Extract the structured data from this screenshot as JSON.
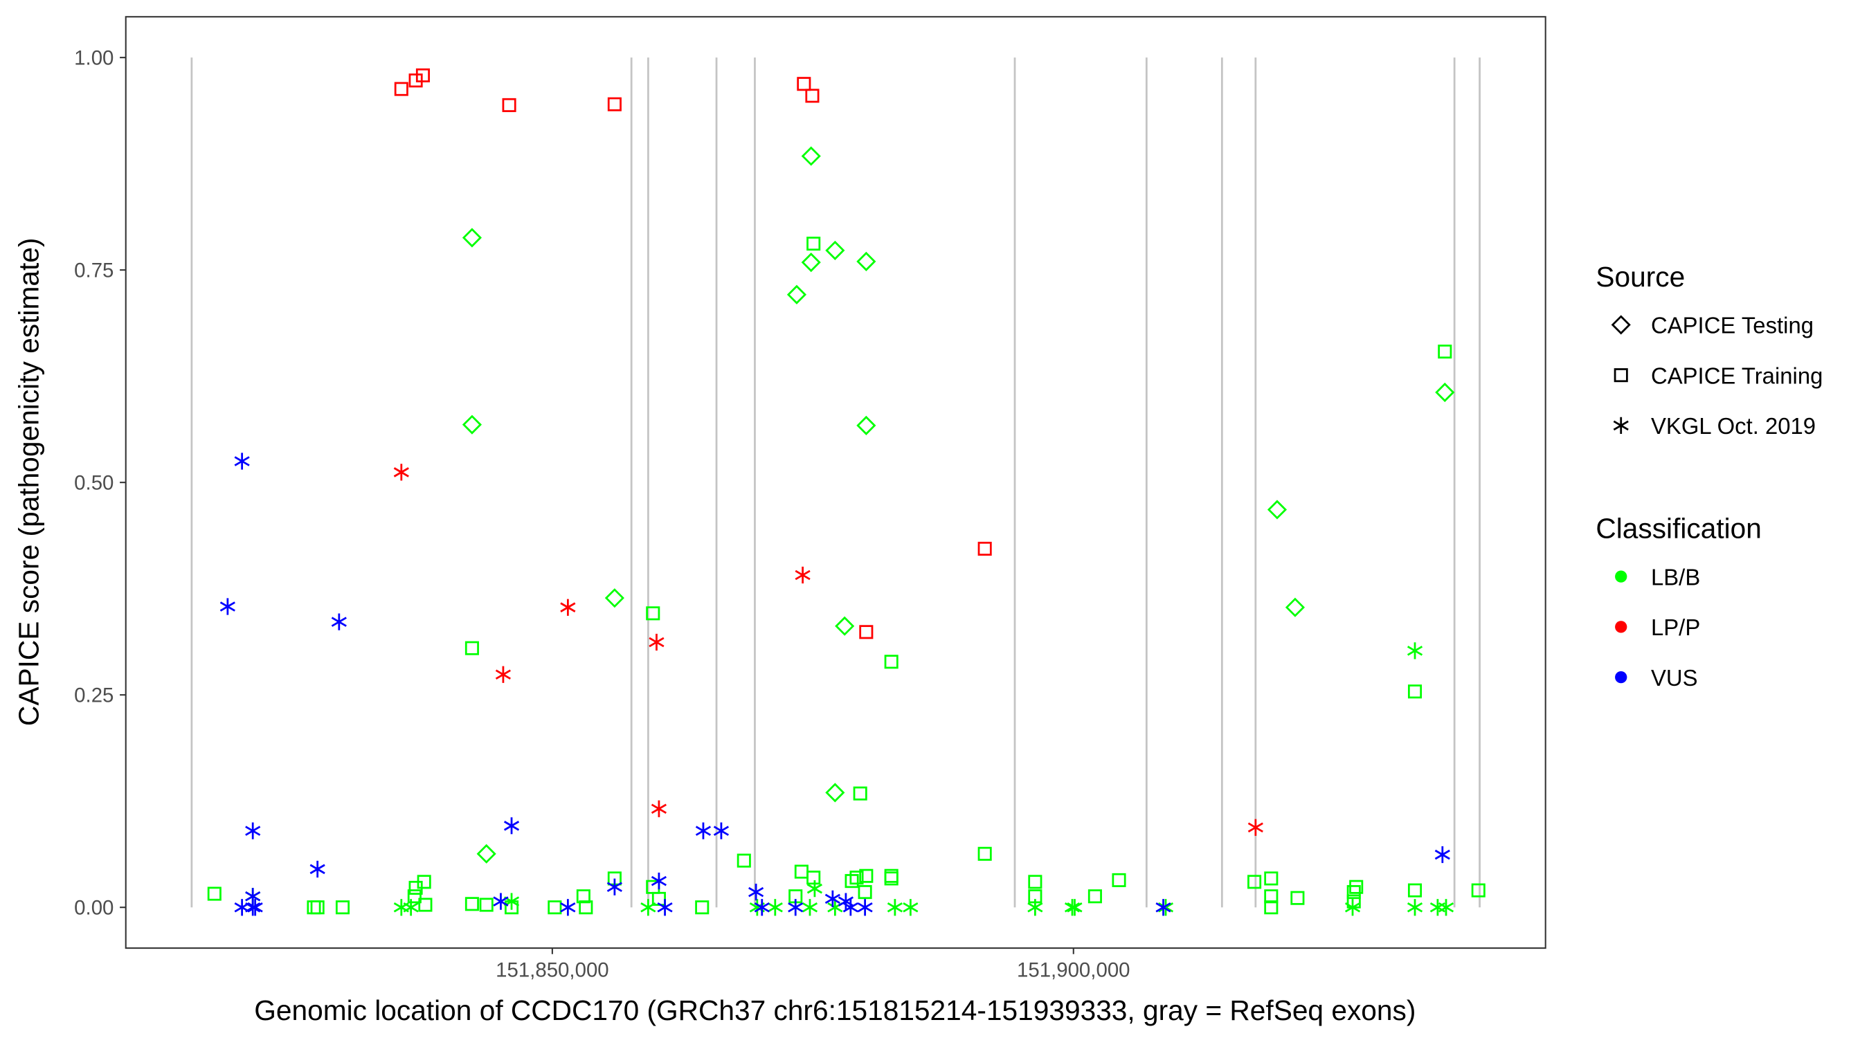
{
  "chart_data": {
    "type": "scatter",
    "xlabel": "Genomic location of CCDC170 (GRCh37 chr6:151815214-151939333, gray = RefSeq exons)",
    "ylabel": "CAPICE score (pathogenicity estimate)",
    "xlim": [
      151809080,
      151945290
    ],
    "ylim": [
      -0.047,
      1.048
    ],
    "x_ticks": [
      151850000,
      151900000
    ],
    "x_tick_labels": [
      "151,850,000",
      "151,900,000"
    ],
    "y_ticks": [
      0,
      0.25,
      0.5,
      0.75,
      1.0
    ],
    "y_tick_labels": [
      "0.00",
      "0.25",
      "0.50",
      "0.75",
      "1.00"
    ],
    "grid": false,
    "exon_positions": [
      151815400,
      151857590,
      151859200,
      151865750,
      151869430,
      151894370,
      151907010,
      151914250,
      151917470,
      151936550,
      151938970
    ],
    "legend": {
      "placement": "right",
      "source_title": "Source",
      "source_items": [
        {
          "label": "CAPICE Testing",
          "shape": "diamond"
        },
        {
          "label": "CAPICE Training",
          "shape": "square"
        },
        {
          "label": "VKGL Oct. 2019",
          "shape": "asterisk"
        }
      ],
      "class_title": "Classification",
      "class_items": [
        {
          "label": "LB/B",
          "color": "#00FF00"
        },
        {
          "label": "LP/P",
          "color": "#FF0000"
        },
        {
          "label": "VUS",
          "color": "#0000FF"
        }
      ]
    },
    "point_fields": [
      "position",
      "score",
      "source",
      "classification"
    ],
    "points": [
      [
        151835518,
        0.963,
        "CAPICE Training",
        "LP/P"
      ],
      [
        151836897,
        0.973,
        "CAPICE Training",
        "LP/P"
      ],
      [
        151837586,
        0.979,
        "CAPICE Training",
        "LP/P"
      ],
      [
        151845862,
        0.944,
        "CAPICE Training",
        "LP/P"
      ],
      [
        151855977,
        0.945,
        "CAPICE Training",
        "LP/P"
      ],
      [
        151874137,
        0.969,
        "CAPICE Training",
        "LP/P"
      ],
      [
        151874942,
        0.955,
        "CAPICE Training",
        "LP/P"
      ],
      [
        151880114,
        0.324,
        "CAPICE Training",
        "LP/P"
      ],
      [
        151891493,
        0.422,
        "CAPICE Training",
        "LP/P"
      ],
      [
        151835518,
        0.512,
        "VKGL Oct. 2019",
        "LP/P"
      ],
      [
        151845287,
        0.274,
        "VKGL Oct. 2019",
        "LP/P"
      ],
      [
        151851494,
        0.353,
        "VKGL Oct. 2019",
        "LP/P"
      ],
      [
        151860000,
        0.312,
        "VKGL Oct. 2019",
        "LP/P"
      ],
      [
        151860230,
        0.116,
        "VKGL Oct. 2019",
        "LP/P"
      ],
      [
        151874022,
        0.391,
        "VKGL Oct. 2019",
        "LP/P"
      ],
      [
        151917471,
        0.094,
        "VKGL Oct. 2019",
        "LP/P"
      ],
      [
        151842299,
        0.788,
        "CAPICE Testing",
        "LB/B"
      ],
      [
        151842299,
        0.568,
        "CAPICE Testing",
        "LB/B"
      ],
      [
        151843678,
        0.063,
        "CAPICE Testing",
        "LB/B"
      ],
      [
        151855977,
        0.364,
        "CAPICE Testing",
        "LB/B"
      ],
      [
        151873448,
        0.721,
        "CAPICE Testing",
        "LB/B"
      ],
      [
        151874827,
        0.884,
        "CAPICE Testing",
        "LB/B"
      ],
      [
        151874827,
        0.759,
        "CAPICE Testing",
        "LB/B"
      ],
      [
        151877126,
        0.773,
        "CAPICE Testing",
        "LB/B"
      ],
      [
        151880114,
        0.76,
        "CAPICE Testing",
        "LB/B"
      ],
      [
        151880114,
        0.567,
        "CAPICE Testing",
        "LB/B"
      ],
      [
        151878045,
        0.331,
        "CAPICE Testing",
        "LB/B"
      ],
      [
        151877126,
        0.135,
        "CAPICE Testing",
        "LB/B"
      ],
      [
        151919539,
        0.468,
        "CAPICE Testing",
        "LB/B"
      ],
      [
        151921263,
        0.353,
        "CAPICE Testing",
        "LB/B"
      ],
      [
        151935630,
        0.606,
        "CAPICE Testing",
        "LB/B"
      ],
      [
        151875057,
        0.781,
        "CAPICE Training",
        "LB/B"
      ],
      [
        151842299,
        0.305,
        "CAPICE Training",
        "LB/B"
      ],
      [
        151859655,
        0.346,
        "CAPICE Training",
        "LB/B"
      ],
      [
        151882528,
        0.289,
        "CAPICE Training",
        "LB/B"
      ],
      [
        151879540,
        0.134,
        "CAPICE Training",
        "LB/B"
      ],
      [
        151868390,
        0.055,
        "CAPICE Training",
        "LB/B"
      ],
      [
        151891493,
        0.063,
        "CAPICE Training",
        "LB/B"
      ],
      [
        151932757,
        0.254,
        "CAPICE Training",
        "LB/B"
      ],
      [
        151935630,
        0.654,
        "CAPICE Training",
        "LB/B"
      ],
      [
        151932757,
        0.02,
        "CAPICE Training",
        "LB/B"
      ],
      [
        151817587,
        0.016,
        "CAPICE Training",
        "LB/B"
      ],
      [
        151827127,
        0.0,
        "CAPICE Training",
        "LB/B"
      ],
      [
        151827472,
        0.0,
        "CAPICE Training",
        "LB/B"
      ],
      [
        151829885,
        0.0,
        "CAPICE Training",
        "LB/B"
      ],
      [
        151836782,
        0.013,
        "CAPICE Training",
        "LB/B"
      ],
      [
        151836897,
        0.023,
        "CAPICE Training",
        "LB/B"
      ],
      [
        151837701,
        0.03,
        "CAPICE Training",
        "LB/B"
      ],
      [
        151837816,
        0.003,
        "CAPICE Training",
        "LB/B"
      ],
      [
        151842299,
        0.004,
        "CAPICE Training",
        "LB/B"
      ],
      [
        151843678,
        0.003,
        "CAPICE Training",
        "LB/B"
      ],
      [
        151846092,
        0.0,
        "CAPICE Training",
        "LB/B"
      ],
      [
        151850230,
        0.0,
        "CAPICE Training",
        "LB/B"
      ],
      [
        151852988,
        0.013,
        "CAPICE Training",
        "LB/B"
      ],
      [
        151853218,
        0.0,
        "CAPICE Training",
        "LB/B"
      ],
      [
        151855977,
        0.034,
        "CAPICE Training",
        "LB/B"
      ],
      [
        151859655,
        0.024,
        "CAPICE Training",
        "LB/B"
      ],
      [
        151860230,
        0.01,
        "CAPICE Training",
        "LB/B"
      ],
      [
        151864368,
        0.0,
        "CAPICE Training",
        "LB/B"
      ],
      [
        151873333,
        0.013,
        "CAPICE Training",
        "LB/B"
      ],
      [
        151873908,
        0.042,
        "CAPICE Training",
        "LB/B"
      ],
      [
        151875057,
        0.035,
        "CAPICE Training",
        "LB/B"
      ],
      [
        151878735,
        0.031,
        "CAPICE Training",
        "LB/B"
      ],
      [
        151879195,
        0.035,
        "CAPICE Training",
        "LB/B"
      ],
      [
        151880000,
        0.018,
        "CAPICE Training",
        "LB/B"
      ],
      [
        151880114,
        0.037,
        "CAPICE Training",
        "LB/B"
      ],
      [
        151882528,
        0.037,
        "CAPICE Training",
        "LB/B"
      ],
      [
        151882528,
        0.034,
        "CAPICE Training",
        "LB/B"
      ],
      [
        151896321,
        0.03,
        "CAPICE Training",
        "LB/B"
      ],
      [
        151896321,
        0.013,
        "CAPICE Training",
        "LB/B"
      ],
      [
        151902068,
        0.013,
        "CAPICE Training",
        "LB/B"
      ],
      [
        151904367,
        0.032,
        "CAPICE Training",
        "LB/B"
      ],
      [
        151917355,
        0.03,
        "CAPICE Training",
        "LB/B"
      ],
      [
        151918964,
        0.034,
        "CAPICE Training",
        "LB/B"
      ],
      [
        151918964,
        0.013,
        "CAPICE Training",
        "LB/B"
      ],
      [
        151918964,
        0.0,
        "CAPICE Training",
        "LB/B"
      ],
      [
        151921493,
        0.011,
        "CAPICE Training",
        "LB/B"
      ],
      [
        151926895,
        0.018,
        "CAPICE Training",
        "LB/B"
      ],
      [
        151927125,
        0.024,
        "CAPICE Training",
        "LB/B"
      ],
      [
        151926895,
        0.007,
        "CAPICE Training",
        "LB/B"
      ],
      [
        151938849,
        0.02,
        "CAPICE Training",
        "LB/B"
      ],
      [
        151835518,
        0.0,
        "VKGL Oct. 2019",
        "LB/B"
      ],
      [
        151836437,
        0.0,
        "VKGL Oct. 2019",
        "LB/B"
      ],
      [
        151846092,
        0.007,
        "VKGL Oct. 2019",
        "LB/B"
      ],
      [
        151859195,
        0.0,
        "VKGL Oct. 2019",
        "LB/B"
      ],
      [
        151869655,
        0.0,
        "VKGL Oct. 2019",
        "LB/B"
      ],
      [
        151871379,
        0.0,
        "VKGL Oct. 2019",
        "LB/B"
      ],
      [
        151874712,
        0.0,
        "VKGL Oct. 2019",
        "LB/B"
      ],
      [
        151875172,
        0.022,
        "VKGL Oct. 2019",
        "LB/B"
      ],
      [
        151877126,
        0.0,
        "VKGL Oct. 2019",
        "LB/B"
      ],
      [
        151882873,
        0.0,
        "VKGL Oct. 2019",
        "LB/B"
      ],
      [
        151884367,
        0.0,
        "VKGL Oct. 2019",
        "LB/B"
      ],
      [
        151896321,
        0.0,
        "VKGL Oct. 2019",
        "LB/B"
      ],
      [
        151899884,
        0.0,
        "VKGL Oct. 2019",
        "LB/B"
      ],
      [
        151900114,
        0.0,
        "VKGL Oct. 2019",
        "LB/B"
      ],
      [
        151908849,
        0.0,
        "VKGL Oct. 2019",
        "LB/B"
      ],
      [
        151926780,
        0.0,
        "VKGL Oct. 2019",
        "LB/B"
      ],
      [
        151932757,
        0.0,
        "VKGL Oct. 2019",
        "LB/B"
      ],
      [
        151932757,
        0.302,
        "VKGL Oct. 2019",
        "LB/B"
      ],
      [
        151934941,
        0.0,
        "VKGL Oct. 2019",
        "LB/B"
      ],
      [
        151935745,
        0.0,
        "VKGL Oct. 2019",
        "LB/B"
      ],
      [
        151821265,
        0.013,
        "VKGL Oct. 2019",
        "LB/B"
      ],
      [
        151820231,
        0.525,
        "VKGL Oct. 2019",
        "VUS"
      ],
      [
        151818851,
        0.354,
        "VKGL Oct. 2019",
        "VUS"
      ],
      [
        151829541,
        0.336,
        "VKGL Oct. 2019",
        "VUS"
      ],
      [
        151821265,
        0.09,
        "VKGL Oct. 2019",
        "VUS"
      ],
      [
        151827472,
        0.045,
        "VKGL Oct. 2019",
        "VUS"
      ],
      [
        151846092,
        0.096,
        "VKGL Oct. 2019",
        "VUS"
      ],
      [
        151855977,
        0.024,
        "VKGL Oct. 2019",
        "VUS"
      ],
      [
        151860230,
        0.031,
        "VKGL Oct. 2019",
        "VUS"
      ],
      [
        151864482,
        0.09,
        "VKGL Oct. 2019",
        "VUS"
      ],
      [
        151866207,
        0.09,
        "VKGL Oct. 2019",
        "VUS"
      ],
      [
        151869540,
        0.018,
        "VKGL Oct. 2019",
        "VUS"
      ],
      [
        151935400,
        0.062,
        "VKGL Oct. 2019",
        "VUS"
      ],
      [
        151820231,
        0.0,
        "VKGL Oct. 2019",
        "VUS"
      ],
      [
        151821265,
        0.0,
        "VKGL Oct. 2019",
        "VUS"
      ],
      [
        151821495,
        0.0,
        "VKGL Oct. 2019",
        "VUS"
      ],
      [
        151821265,
        0.013,
        "VKGL Oct. 2019",
        "VUS"
      ],
      [
        151845058,
        0.007,
        "VKGL Oct. 2019",
        "VUS"
      ],
      [
        151851494,
        0.0,
        "VKGL Oct. 2019",
        "VUS"
      ],
      [
        151860804,
        0.0,
        "VKGL Oct. 2019",
        "VUS"
      ],
      [
        151870115,
        0.0,
        "VKGL Oct. 2019",
        "VUS"
      ],
      [
        151873333,
        0.0,
        "VKGL Oct. 2019",
        "VUS"
      ],
      [
        151876896,
        0.01,
        "VKGL Oct. 2019",
        "VUS"
      ],
      [
        151878160,
        0.007,
        "VKGL Oct. 2019",
        "VUS"
      ],
      [
        151878620,
        0.0,
        "VKGL Oct. 2019",
        "VUS"
      ],
      [
        151880000,
        0.0,
        "VKGL Oct. 2019",
        "VUS"
      ],
      [
        151908619,
        0.0,
        "VKGL Oct. 2019",
        "VUS"
      ]
    ]
  }
}
